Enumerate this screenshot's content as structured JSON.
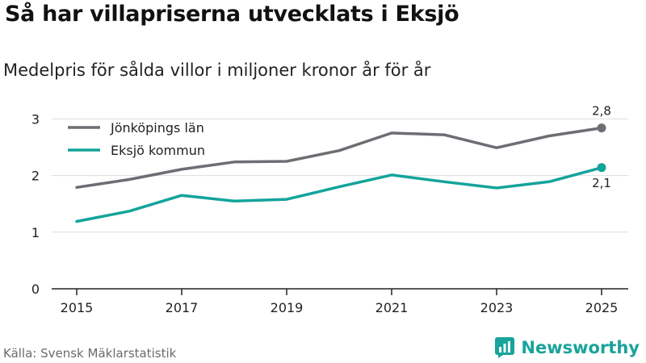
{
  "header": {
    "title": "Så har villapriserna utvecklats i Eksjö",
    "subtitle": "Medelpris för sålda villor i miljoner kronor år för år"
  },
  "footer": {
    "source": "Källa: Svensk Mäklarstatistik",
    "brand": "Newsworthy"
  },
  "colors": {
    "series_1": "#6e6d73",
    "series_2": "#13a49b",
    "grid": "#dddddd",
    "axis": "#222222",
    "brand": "#19a39b"
  },
  "icons": {
    "brand_logo": "newsworthy-bar-chart-icon"
  },
  "chart_data": {
    "type": "line",
    "title": "Så har villapriserna utvecklats i Eksjö",
    "subtitle": "Medelpris för sålda villor i miljoner kronor år för år",
    "xlabel": "",
    "ylabel": "",
    "x": [
      2015,
      2016,
      2017,
      2018,
      2019,
      2020,
      2021,
      2022,
      2023,
      2024,
      2025
    ],
    "x_tick_labels": [
      "2015",
      "2017",
      "2019",
      "2021",
      "2023",
      "2025"
    ],
    "y_ticks": [
      0,
      1,
      2,
      3
    ],
    "y_tick_labels": [
      "0",
      "1",
      "2",
      "3"
    ],
    "ylim": [
      0,
      3.2
    ],
    "grid": true,
    "legend_position": "top-left",
    "series": [
      {
        "name": "Jönköpings län",
        "values": [
          1.79,
          1.93,
          2.11,
          2.24,
          2.25,
          2.44,
          2.75,
          2.72,
          2.49,
          2.7,
          2.84
        ],
        "end_label": "2,8"
      },
      {
        "name": "Eksjö kommun",
        "values": [
          1.19,
          1.37,
          1.65,
          1.55,
          1.58,
          1.8,
          2.01,
          1.89,
          1.78,
          1.89,
          2.14
        ],
        "end_label": "2,1"
      }
    ]
  }
}
